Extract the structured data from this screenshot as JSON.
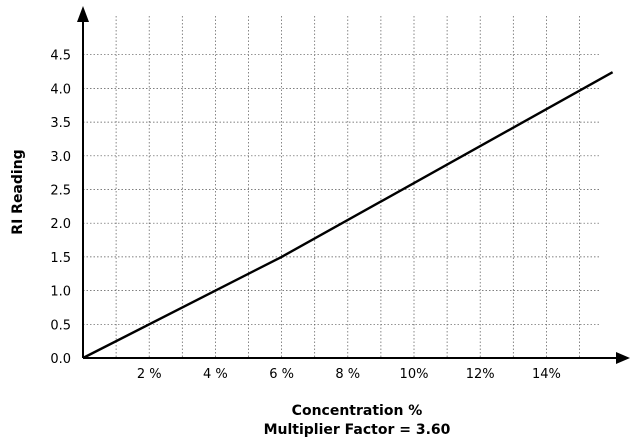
{
  "chart_data": {
    "type": "line",
    "xlabel": "Concentration %",
    "subtitle": "Multiplier Factor = 3.60",
    "ylabel": "RI Reading",
    "x_tick_labels": [
      {
        "value": 2,
        "label": "2 %"
      },
      {
        "value": 4,
        "label": "4 %"
      },
      {
        "value": 6,
        "label": "6 %"
      },
      {
        "value": 8,
        "label": "8 %"
      },
      {
        "value": 10,
        "label": "10%"
      },
      {
        "value": 12,
        "label": "12%"
      },
      {
        "value": 14,
        "label": "14%"
      }
    ],
    "y_ticks": [
      0.0,
      0.5,
      1.0,
      1.5,
      2.0,
      2.5,
      3.0,
      3.5,
      4.0,
      4.5
    ],
    "y_tick_labels": [
      "0.0",
      "0.5",
      "1.0",
      "1.5",
      "2.0",
      "2.5",
      "3.0",
      "3.5",
      "4.0",
      "4.5"
    ],
    "xlim": [
      0,
      16
    ],
    "ylim": [
      0,
      5
    ],
    "grid": true,
    "series": [
      {
        "x": [
          0,
          6,
          16
        ],
        "y": [
          0,
          1.5,
          4.24
        ]
      }
    ]
  }
}
